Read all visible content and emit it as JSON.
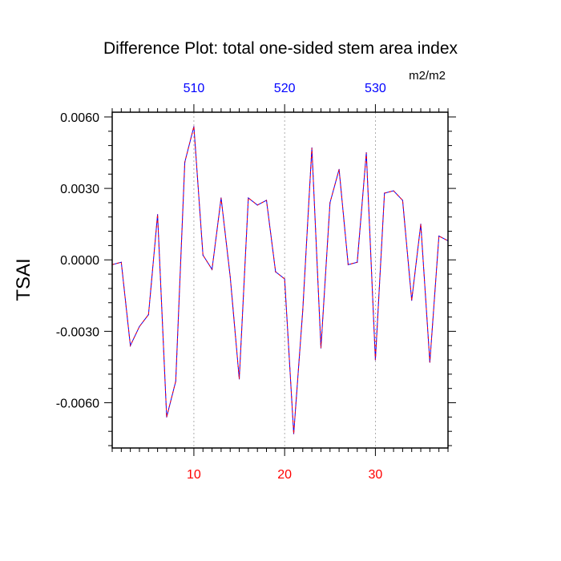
{
  "chart_data": {
    "type": "line",
    "title": "Difference Plot: total one-sided stem area index",
    "units_label": "m2/m2",
    "ylabel": "TSAI",
    "xlabel": "",
    "xlim": [
      1,
      38
    ],
    "ylim": [
      -0.0079,
      0.0062
    ],
    "bottom_ticks": [
      10,
      20,
      30
    ],
    "bottom_tick_labels": [
      "10",
      "20",
      "30"
    ],
    "top_ticks": [
      10,
      20,
      30
    ],
    "top_tick_labels": [
      "510",
      "520",
      "530"
    ],
    "y_ticks": [
      0.006,
      0.003,
      0.0,
      -0.003,
      -0.006
    ],
    "y_tick_labels": [
      "0.0060",
      "0.0030",
      "0.0000",
      "-0.0030",
      "-0.0060"
    ],
    "vertical_gridlines": [
      10,
      20,
      30
    ],
    "colors": {
      "bottom_tick_label": "#ff0000",
      "top_tick_label": "#0000ff",
      "line_a": "#0000ff",
      "line_b": "#ff0000"
    },
    "series": [
      {
        "x": [
          1,
          2,
          3,
          4,
          5,
          6,
          7,
          8,
          9,
          10,
          11,
          12,
          13,
          14,
          15,
          16,
          17,
          18,
          19,
          20,
          21,
          22,
          23,
          24,
          25,
          26,
          27,
          28,
          29,
          30,
          31,
          32,
          33,
          34,
          35,
          36,
          37,
          38
        ],
        "values": [
          -0.0002,
          -0.0001,
          -0.0036,
          -0.0028,
          -0.0023,
          0.0019,
          -0.0066,
          -0.0051,
          0.0041,
          0.0056,
          0.0002,
          -0.0004,
          0.0026,
          -0.0007,
          -0.005,
          0.0026,
          0.0023,
          0.0025,
          -0.0005,
          -0.0008,
          -0.0073,
          -0.0021,
          0.0047,
          -0.0037,
          0.0024,
          0.0038,
          -0.0002,
          -0.0001,
          0.0045,
          -0.0042,
          0.0028,
          0.0029,
          0.0025,
          -0.0017,
          0.0015,
          -0.0043,
          0.001,
          0.0008
        ]
      }
    ]
  }
}
